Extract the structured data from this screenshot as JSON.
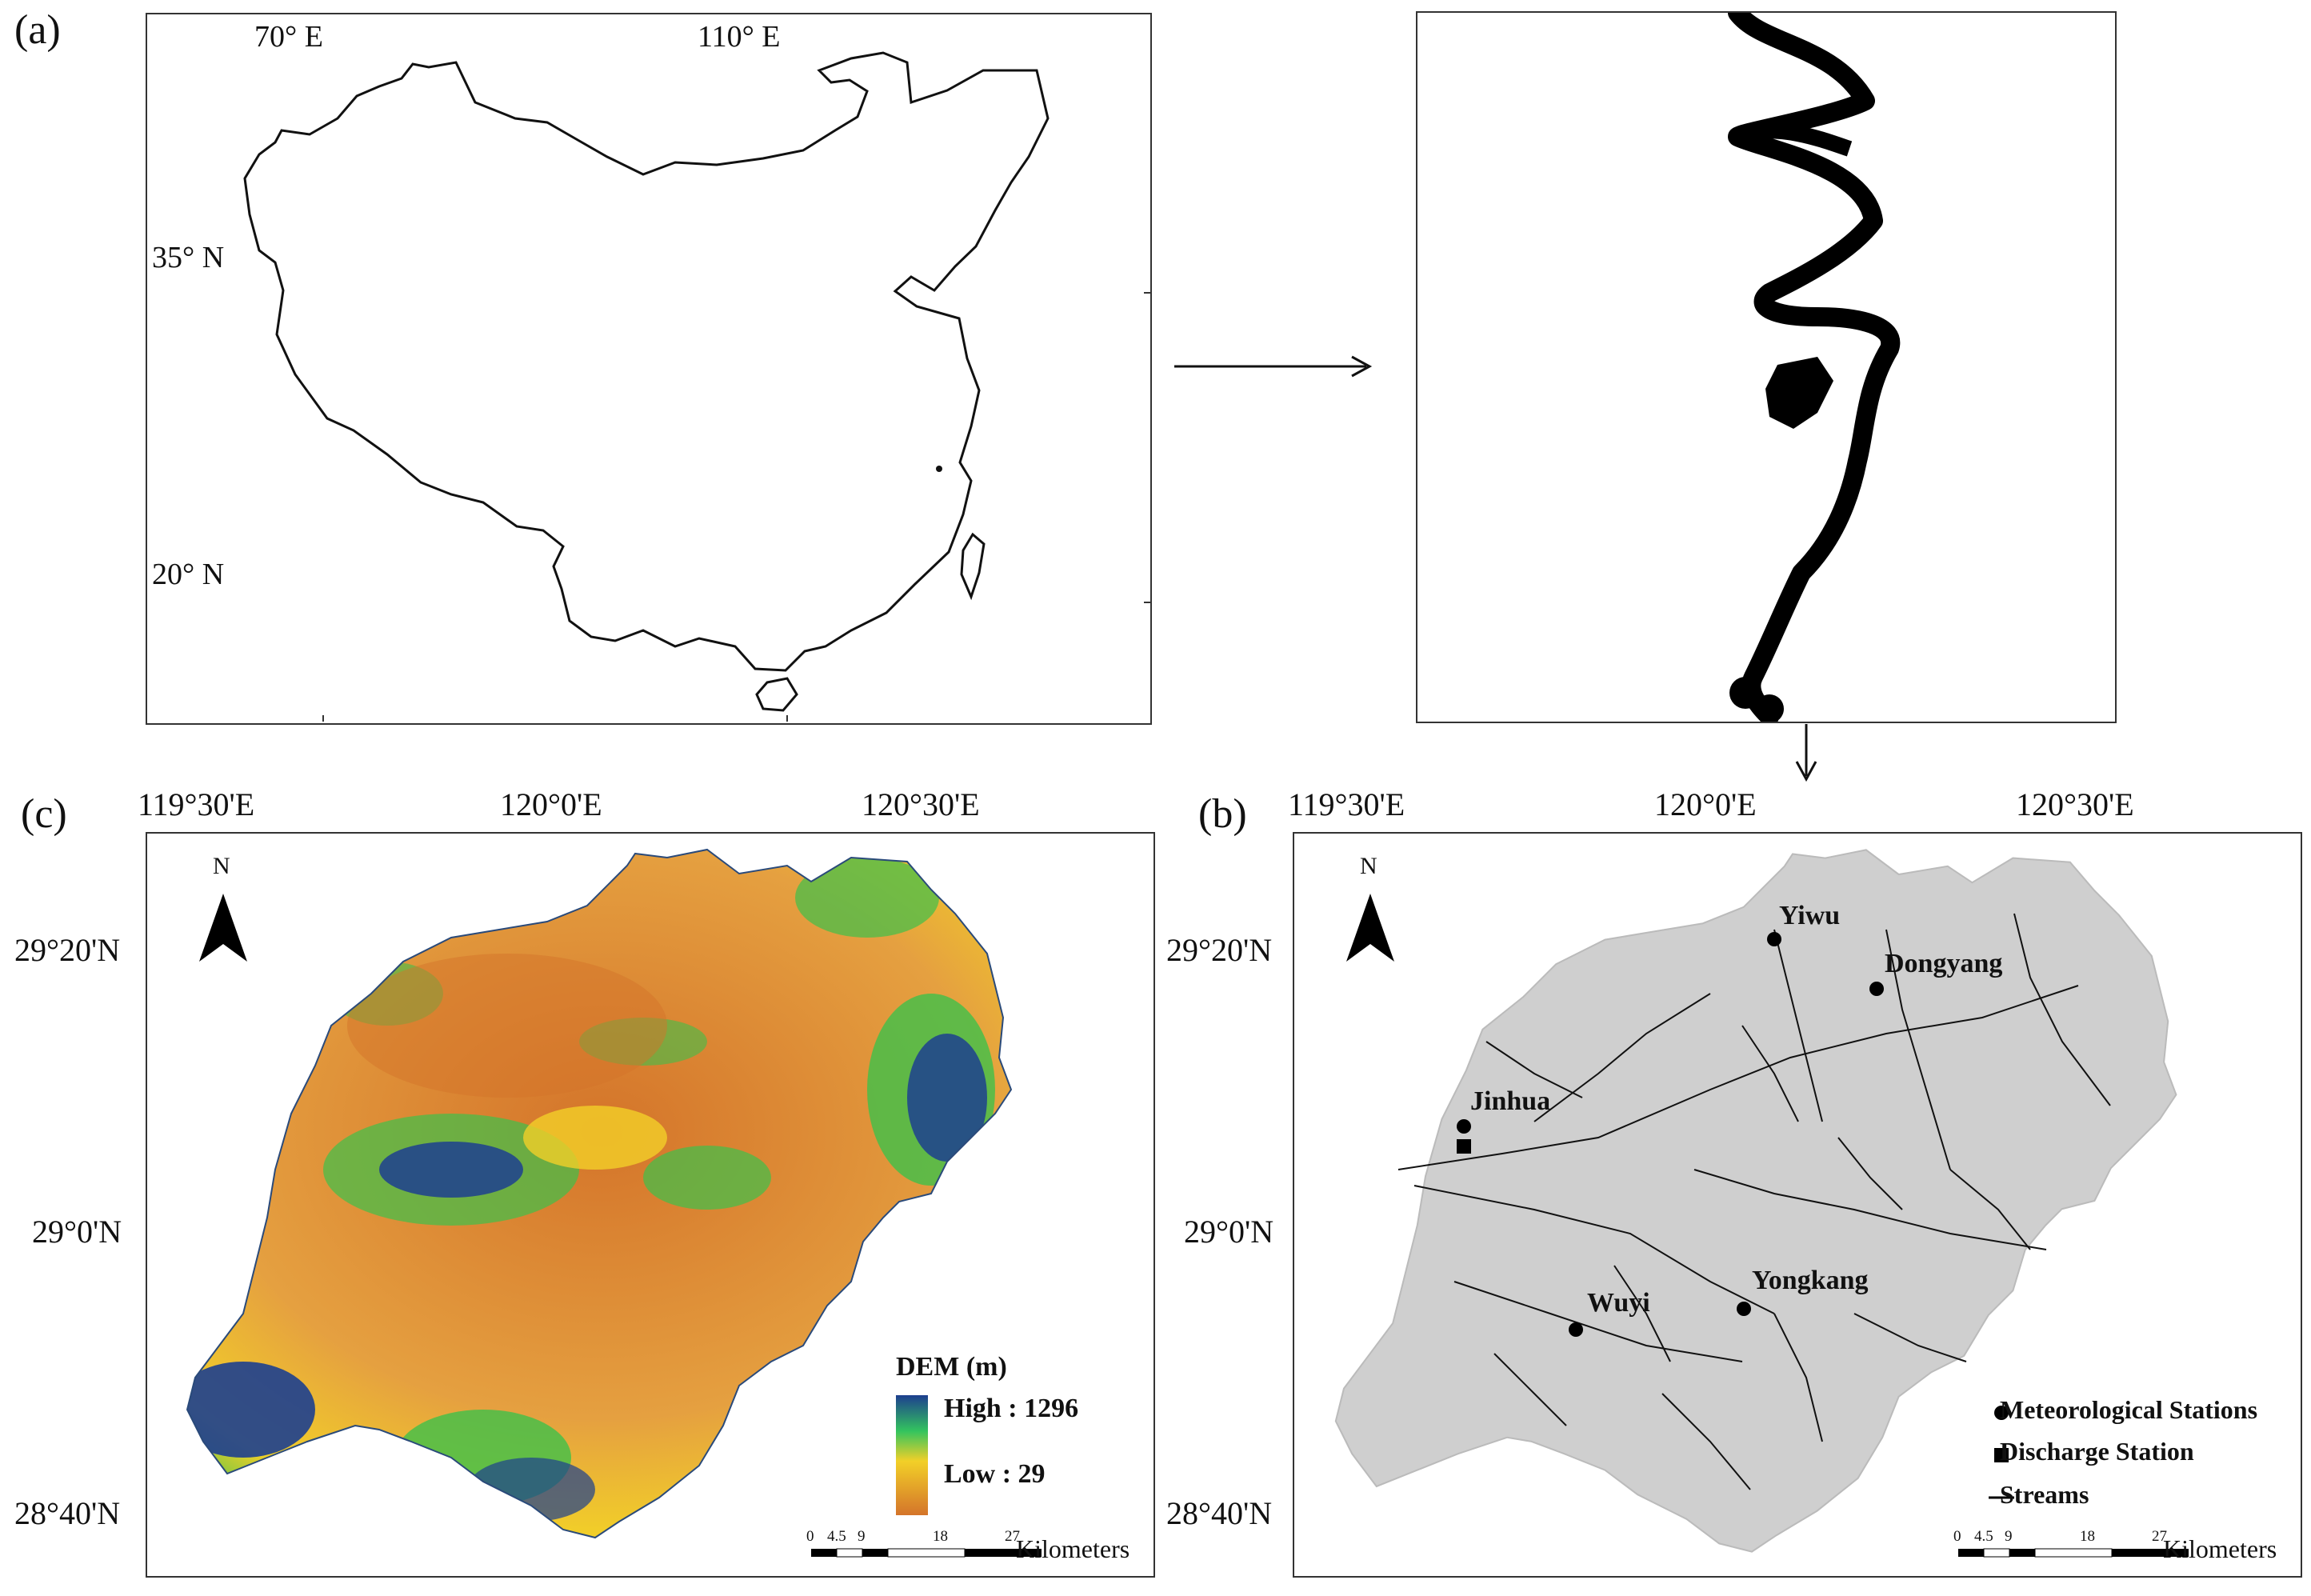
{
  "panel_a": {
    "label": "(a)",
    "lon_labels": [
      "70° E",
      "110° E"
    ],
    "lat_labels": [
      "35° N",
      "20° N"
    ]
  },
  "panel_b": {
    "label": "(b)",
    "lon_labels": [
      "119°30'E",
      "120°0'E",
      "120°30'E"
    ],
    "lat_labels": [
      "29°20'N",
      "29°0'N",
      "28°40'N"
    ],
    "north": "N",
    "stations": [
      {
        "name": "Yiwu",
        "kind": "meteorological"
      },
      {
        "name": "Dongyang",
        "kind": "meteorological"
      },
      {
        "name": "Jinhua",
        "kind": "meteorological"
      },
      {
        "name": "Wuyi",
        "kind": "meteorological"
      },
      {
        "name": "Yongkang",
        "kind": "meteorological"
      }
    ],
    "legend": {
      "met": "Meteorological Stations",
      "discharge": "Discharge Station",
      "streams": "Streams"
    },
    "scale": {
      "ticks": [
        "0",
        "4.5",
        "9",
        "18",
        "27"
      ],
      "unit": "Kilometers"
    }
  },
  "panel_c": {
    "label": "(c)",
    "lon_labels": [
      "119°30'E",
      "120°0'E",
      "120°30'E"
    ],
    "lat_labels": [
      "29°20'N",
      "29°0'N",
      "28°40'N"
    ],
    "north": "N",
    "legend": {
      "title": "DEM (m)",
      "high": "High : 1296",
      "low": "Low : 29"
    },
    "scale": {
      "ticks": [
        "0",
        "4.5",
        "9",
        "18",
        "27"
      ],
      "unit": "Kilometers"
    }
  },
  "colors": {
    "dem_low": "#d4742a",
    "dem_mid": "#f2d028",
    "dem_green": "#3fc04a",
    "dem_high": "#1d3f8f",
    "basin_gray": "#cfcfcf"
  }
}
